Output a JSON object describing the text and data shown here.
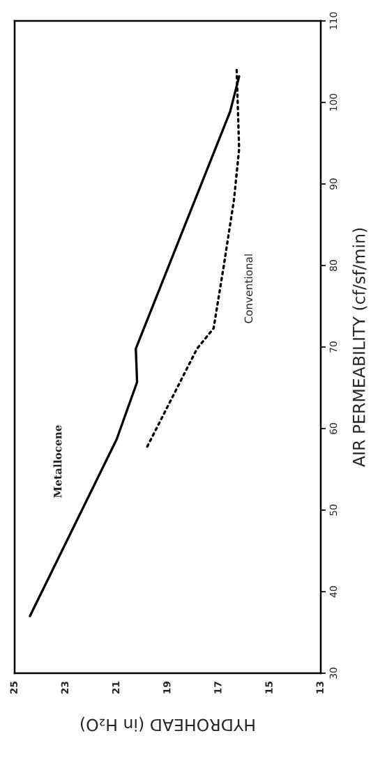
{
  "chart_data": {
    "type": "line",
    "xlabel": "HYDROHEAD (in H₂O)",
    "ylabel": "AIR PERMEABILITY (cf/sf/min)",
    "xlim": [
      25,
      13
    ],
    "xticks": [
      13,
      15,
      17,
      19,
      21,
      23,
      25
    ],
    "ylim": [
      30,
      110
    ],
    "yticks": [
      30,
      40,
      50,
      60,
      70,
      80,
      90,
      100,
      110
    ],
    "grid": false,
    "legend": false,
    "marker": "none",
    "series": [
      {
        "name": "Metallocene",
        "color": "#000000",
        "line_style": "solid",
        "x": [
          24.4,
          21.0,
          20.2,
          20.25,
          16.55,
          16.2
        ],
        "values": [
          37.0,
          58.7,
          65.7,
          69.8,
          98.9,
          103.2
        ]
      },
      {
        "name": "Conventional",
        "color": "#000000",
        "line_style": "dotted",
        "x": [
          19.8,
          17.85,
          17.2,
          16.8,
          16.4,
          16.2,
          16.3
        ],
        "values": [
          57.8,
          69.8,
          72.3,
          80.0,
          88.1,
          94.3,
          104.4
        ]
      }
    ]
  }
}
